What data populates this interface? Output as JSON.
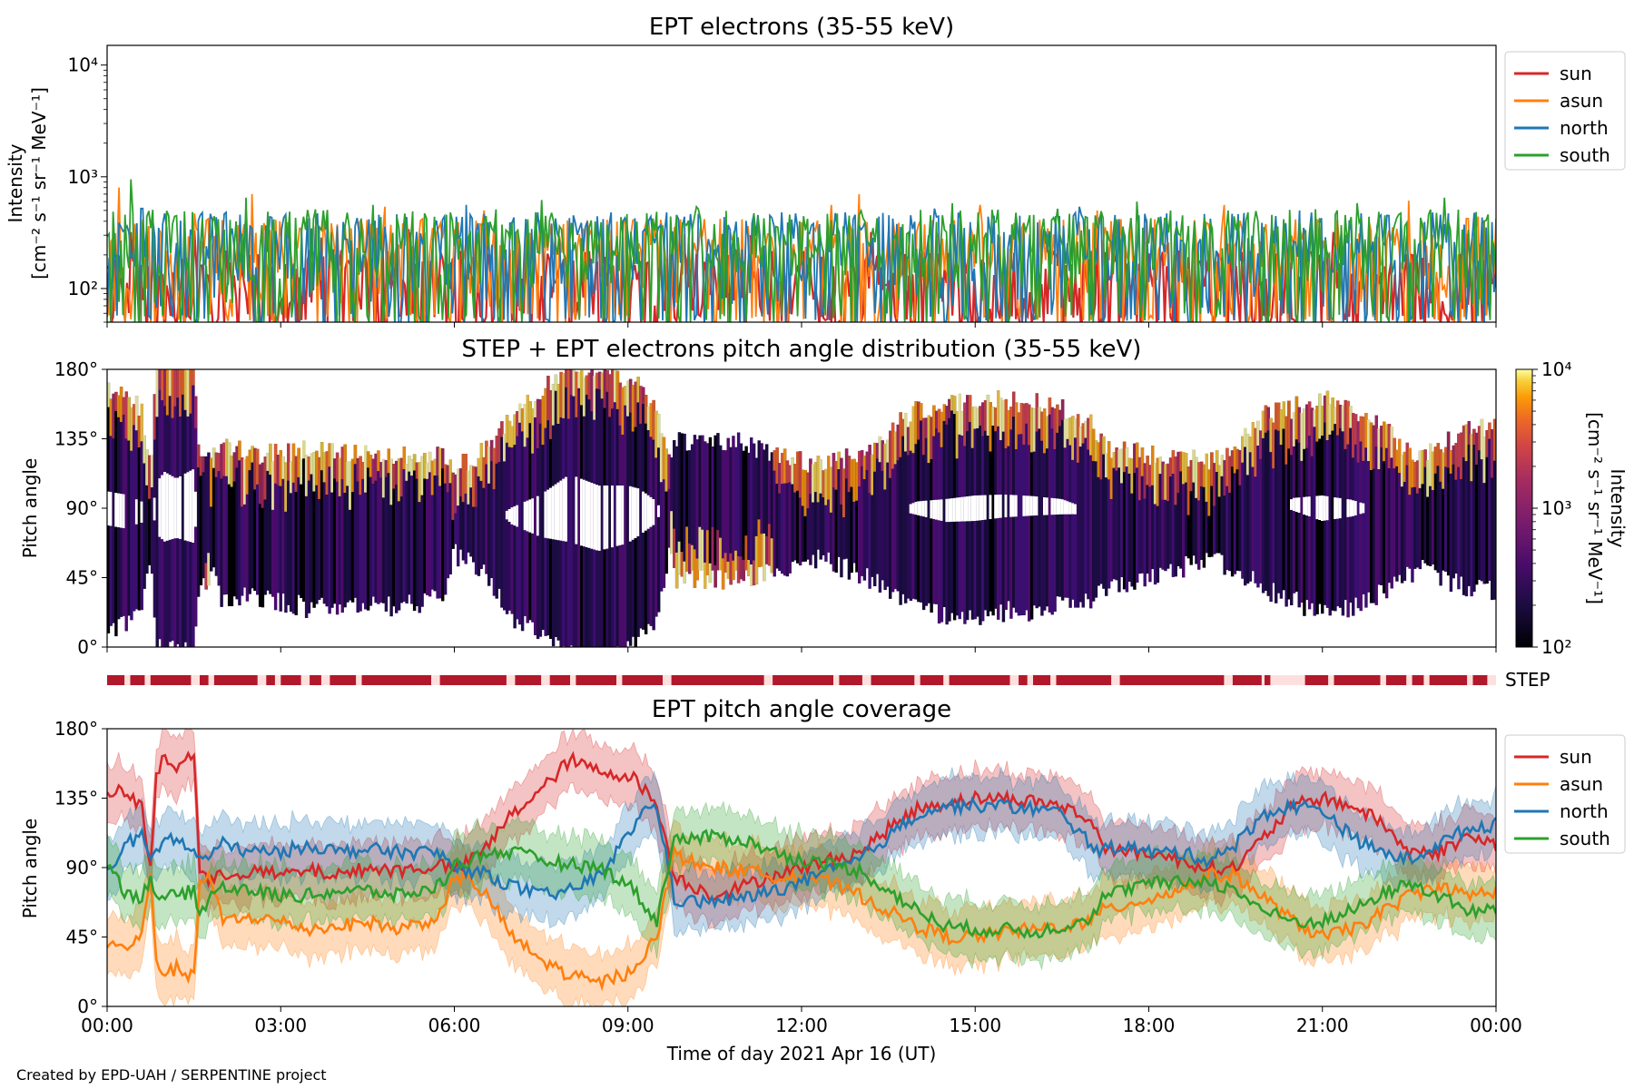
{
  "footer": {
    "credit": "Created by EPD-UAH / SERPENTINE project"
  },
  "colors": {
    "sun": "#d62728",
    "asun": "#ff7f0e",
    "north": "#1f77b4",
    "south": "#2ca02c",
    "step_bar": "#b2182b",
    "step_gap": "#fde0dd"
  },
  "chart_data": [
    {
      "id": "intensity",
      "type": "line",
      "title": "EPT electrons (35-55 keV)",
      "ylabel_line1": "Intensity",
      "ylabel_line2": "[cm⁻² s⁻¹ sr⁻¹ MeV⁻¹]",
      "yscale": "log",
      "ylim": [
        50,
        15000
      ],
      "yticks": [
        100,
        1000,
        10000
      ],
      "ytick_labels": [
        "10²",
        "10³",
        "10⁴"
      ],
      "xlim_hours": [
        0,
        24
      ],
      "legend_position": "upper right outside",
      "series": [
        {
          "name": "sun",
          "color": "#d62728",
          "baseline": 120,
          "spikes": [
            [
              0.4,
              320
            ],
            [
              1.5,
              330
            ],
            [
              3.0,
              300
            ],
            [
              5.2,
              340
            ],
            [
              7.3,
              310
            ],
            [
              9.0,
              330
            ],
            [
              11.1,
              300
            ],
            [
              13.2,
              320
            ],
            [
              15.0,
              310
            ],
            [
              17.1,
              330
            ],
            [
              19.4,
              300
            ],
            [
              21.2,
              320
            ],
            [
              23.5,
              310
            ]
          ]
        },
        {
          "name": "asun",
          "color": "#ff7f0e",
          "baseline": 230,
          "spikes": [
            [
              0.2,
              800
            ],
            [
              1.5,
              470
            ],
            [
              2.5,
              700
            ],
            [
              4.8,
              540
            ],
            [
              6.5,
              500
            ],
            [
              9.0,
              650
            ],
            [
              10.6,
              420
            ],
            [
              12.5,
              560
            ],
            [
              13.0,
              700
            ],
            [
              15.1,
              560
            ],
            [
              17.1,
              500
            ],
            [
              19.3,
              560
            ],
            [
              22.5,
              610
            ],
            [
              23.7,
              440
            ]
          ]
        },
        {
          "name": "north",
          "color": "#1f77b4",
          "baseline": 260,
          "spikes": [
            [
              0.6,
              520
            ],
            [
              3.1,
              460
            ],
            [
              6.2,
              560
            ],
            [
              8.7,
              480
            ],
            [
              11.9,
              470
            ],
            [
              14.3,
              520
            ],
            [
              16.8,
              540
            ],
            [
              18.2,
              440
            ],
            [
              20.6,
              500
            ],
            [
              22.9,
              480
            ]
          ]
        },
        {
          "name": "south",
          "color": "#2ca02c",
          "baseline": 280,
          "spikes": [
            [
              0.4,
              950
            ],
            [
              2.4,
              650
            ],
            [
              4.6,
              560
            ],
            [
              7.5,
              620
            ],
            [
              10.2,
              540
            ],
            [
              14.6,
              580
            ],
            [
              17.8,
              600
            ],
            [
              21.6,
              580
            ],
            [
              23.1,
              650
            ],
            [
              23.8,
              400
            ]
          ]
        }
      ],
      "legend": [
        "sun",
        "asun",
        "north",
        "south"
      ]
    },
    {
      "id": "pad",
      "type": "heatmap",
      "title": "STEP + EPT electrons pitch angle distribution (35-55 keV)",
      "ylabel": "Pitch angle",
      "ylim": [
        0,
        180
      ],
      "yticks": [
        0,
        45,
        90,
        135,
        180
      ],
      "ytick_labels": [
        "0°",
        "45°",
        "90°",
        "135°",
        "180°"
      ],
      "xlim_hours": [
        0,
        24
      ],
      "colorbar": {
        "label": "Intensity",
        "label_units": "[cm⁻² s⁻¹ sr⁻¹ MeV⁻¹]",
        "scale": "log",
        "range": [
          100,
          10000
        ],
        "ticks": [
          100,
          1000,
          10000
        ],
        "tick_labels": [
          "10²",
          "10³",
          "10⁴"
        ],
        "colormap": "inferno"
      },
      "note": "Band of intensity spans the pitch-angle range covered by the sun/asun/north/south sectors (see coverage panel)"
    },
    {
      "id": "step",
      "type": "bar",
      "label": "STEP",
      "xlim_hours": [
        0,
        24
      ],
      "gaps_hours": [
        [
          0.3,
          0.4
        ],
        [
          0.65,
          0.75
        ],
        [
          1.45,
          1.6
        ],
        [
          1.75,
          1.85
        ],
        [
          2.6,
          2.75
        ],
        [
          2.9,
          3.0
        ],
        [
          3.35,
          3.5
        ],
        [
          3.7,
          3.85
        ],
        [
          4.3,
          4.4
        ],
        [
          5.6,
          5.75
        ],
        [
          6.9,
          7.05
        ],
        [
          7.5,
          7.65
        ],
        [
          8.0,
          8.1
        ],
        [
          8.8,
          8.9
        ],
        [
          9.6,
          9.75
        ],
        [
          11.35,
          11.5
        ],
        [
          12.55,
          12.65
        ],
        [
          13.05,
          13.2
        ],
        [
          13.95,
          14.05
        ],
        [
          14.45,
          14.55
        ],
        [
          15.6,
          15.75
        ],
        [
          15.9,
          16.0
        ],
        [
          16.3,
          16.4
        ],
        [
          17.35,
          17.5
        ],
        [
          19.3,
          19.45
        ],
        [
          19.95,
          20.0
        ],
        [
          20.1,
          20.7
        ],
        [
          21.1,
          21.2
        ],
        [
          22.0,
          22.1
        ],
        [
          22.45,
          22.55
        ],
        [
          22.75,
          22.85
        ],
        [
          23.5,
          23.6
        ],
        [
          23.85,
          24.0
        ]
      ]
    },
    {
      "id": "coverage",
      "type": "line",
      "title": "EPT pitch angle coverage",
      "ylabel": "Pitch angle",
      "xlabel": "Time of day 2021 Apr 16 (UT)",
      "ylim": [
        0,
        180
      ],
      "yticks": [
        0,
        45,
        90,
        135,
        180
      ],
      "ytick_labels": [
        "0°",
        "45°",
        "90°",
        "135°",
        "180°"
      ],
      "xlim_hours": [
        0,
        24
      ],
      "xticks_hours": [
        0,
        3,
        6,
        9,
        12,
        15,
        18,
        21,
        24
      ],
      "xtick_labels": [
        "00:00",
        "03:00",
        "06:00",
        "09:00",
        "12:00",
        "15:00",
        "18:00",
        "21:00",
        "00:00"
      ],
      "legend_position": "upper right outside",
      "series": [
        {
          "name": "sun",
          "color": "#d62728",
          "x": [
            0,
            0.3,
            0.6,
            0.75,
            0.85,
            1.0,
            1.2,
            1.5,
            1.6,
            1.75,
            2.0,
            2.5,
            3.0,
            3.5,
            4.0,
            4.5,
            5.0,
            5.5,
            5.8,
            6.0,
            6.3,
            6.6,
            7.0,
            7.5,
            8.0,
            8.5,
            9.0,
            9.2,
            9.5,
            9.8,
            10.0,
            10.5,
            11.0,
            11.5,
            12.0,
            12.5,
            13.0,
            13.5,
            14.0,
            14.5,
            15.0,
            15.5,
            16.0,
            16.5,
            17.0,
            17.2,
            17.5,
            18.0,
            18.5,
            19.0,
            19.5,
            20.0,
            20.5,
            21.0,
            21.5,
            22.0,
            22.5,
            23.0,
            23.5,
            24.0
          ],
          "y": [
            140,
            138,
            130,
            88,
            150,
            162,
            155,
            165,
            90,
            80,
            85,
            88,
            85,
            88,
            85,
            90,
            88,
            90,
            92,
            88,
            95,
            105,
            125,
            140,
            160,
            152,
            150,
            145,
            130,
            85,
            80,
            72,
            78,
            85,
            90,
            95,
            100,
            115,
            128,
            132,
            135,
            135,
            133,
            130,
            120,
            105,
            100,
            100,
            95,
            90,
            90,
            110,
            130,
            135,
            130,
            120,
            100,
            100,
            110,
            105
          ]
        },
        {
          "name": "asun",
          "color": "#ff7f0e",
          "x": [
            0,
            0.3,
            0.6,
            0.75,
            0.85,
            1.0,
            1.2,
            1.5,
            1.6,
            1.75,
            2.0,
            2.5,
            3.0,
            3.5,
            4.0,
            4.5,
            5.0,
            5.5,
            5.8,
            6.0,
            6.3,
            6.6,
            7.0,
            7.5,
            8.0,
            8.5,
            9.0,
            9.2,
            9.5,
            9.8,
            10.0,
            10.5,
            11.0,
            11.5,
            12.0,
            12.5,
            13.0,
            13.5,
            14.0,
            14.5,
            15.0,
            15.5,
            16.0,
            16.5,
            17.0,
            17.2,
            17.5,
            18.0,
            18.5,
            19.0,
            19.5,
            20.0,
            20.5,
            21.0,
            21.5,
            22.0,
            22.5,
            23.0,
            23.5,
            24.0
          ],
          "y": [
            40,
            38,
            45,
            88,
            30,
            20,
            25,
            18,
            80,
            85,
            55,
            58,
            55,
            50,
            52,
            55,
            50,
            55,
            60,
            85,
            80,
            70,
            45,
            30,
            20,
            15,
            22,
            30,
            45,
            100,
            95,
            90,
            88,
            85,
            85,
            80,
            72,
            62,
            52,
            45,
            45,
            48,
            50,
            52,
            55,
            62,
            65,
            70,
            75,
            85,
            85,
            70,
            55,
            45,
            50,
            60,
            72,
            78,
            72,
            75
          ]
        },
        {
          "name": "north",
          "color": "#1f77b4",
          "x": [
            0,
            0.3,
            0.6,
            0.75,
            0.85,
            1.0,
            1.2,
            1.5,
            1.6,
            1.75,
            2.0,
            2.5,
            3.0,
            3.5,
            4.0,
            4.5,
            5.0,
            5.5,
            5.8,
            6.0,
            6.3,
            6.6,
            7.0,
            7.5,
            8.0,
            8.5,
            9.0,
            9.2,
            9.5,
            9.8,
            10.0,
            10.5,
            11.0,
            11.5,
            12.0,
            12.5,
            13.0,
            13.5,
            14.0,
            14.5,
            15.0,
            15.5,
            16.0,
            16.5,
            17.0,
            17.2,
            17.5,
            18.0,
            18.5,
            19.0,
            19.5,
            20.0,
            20.5,
            21.0,
            21.5,
            22.0,
            22.5,
            23.0,
            23.5,
            24.0
          ],
          "y": [
            85,
            105,
            110,
            95,
            100,
            110,
            108,
            100,
            95,
            98,
            105,
            100,
            100,
            105,
            100,
            102,
            100,
            100,
            98,
            90,
            88,
            85,
            78,
            72,
            75,
            85,
            110,
            125,
            130,
            70,
            68,
            68,
            70,
            75,
            80,
            88,
            95,
            110,
            125,
            130,
            130,
            130,
            128,
            125,
            105,
            100,
            105,
            100,
            100,
            95,
            105,
            125,
            130,
            128,
            110,
            100,
            95,
            105,
            115,
            118
          ]
        },
        {
          "name": "south",
          "color": "#2ca02c",
          "x": [
            0,
            0.3,
            0.6,
            0.75,
            0.85,
            1.0,
            1.2,
            1.5,
            1.6,
            1.75,
            2.0,
            2.5,
            3.0,
            3.5,
            4.0,
            4.5,
            5.0,
            5.5,
            5.8,
            6.0,
            6.3,
            6.6,
            7.0,
            7.5,
            8.0,
            8.5,
            9.0,
            9.2,
            9.5,
            9.8,
            10.0,
            10.5,
            11.0,
            11.5,
            12.0,
            12.5,
            13.0,
            13.5,
            14.0,
            14.5,
            15.0,
            15.5,
            16.0,
            16.5,
            17.0,
            17.2,
            17.5,
            18.0,
            18.5,
            19.0,
            19.5,
            20.0,
            20.5,
            21.0,
            21.5,
            22.0,
            22.5,
            23.0,
            23.5,
            24.0
          ],
          "y": [
            95,
            75,
            70,
            85,
            72,
            70,
            72,
            75,
            60,
            70,
            78,
            75,
            72,
            72,
            75,
            75,
            72,
            75,
            80,
            92,
            95,
            100,
            100,
            95,
            92,
            90,
            80,
            70,
            55,
            110,
            108,
            110,
            108,
            100,
            95,
            92,
            88,
            75,
            62,
            52,
            50,
            50,
            48,
            52,
            58,
            70,
            75,
            80,
            80,
            82,
            75,
            62,
            55,
            55,
            62,
            72,
            80,
            72,
            62,
            62
          ]
        }
      ],
      "band_halfwidth_deg": 18,
      "legend": [
        "sun",
        "asun",
        "north",
        "south"
      ]
    }
  ]
}
